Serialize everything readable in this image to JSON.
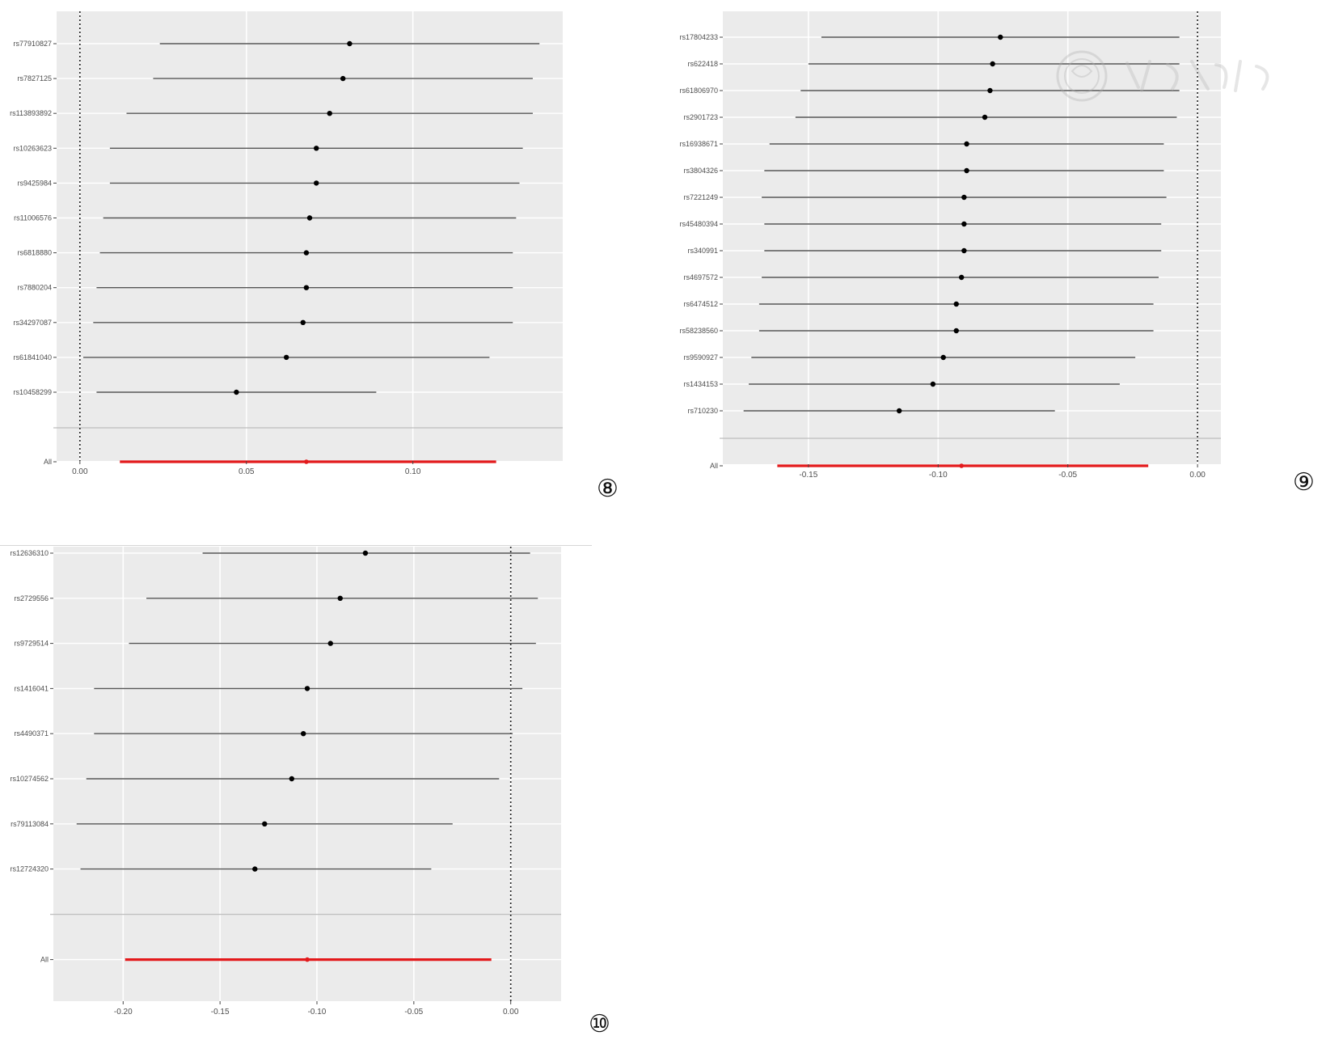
{
  "colors": {
    "panel_bg": "#ebebeb",
    "grid": "#ffffff",
    "ci_line": "#555555",
    "point": "#000000",
    "overall": "#e31a1c",
    "axis_text": "#4d4d4d"
  },
  "panels": {
    "p8": {
      "number": "⑧"
    },
    "p9": {
      "number": "⑨"
    },
    "p10": {
      "number": "⑩"
    }
  },
  "chart_data": [
    {
      "id": "p8",
      "type": "scatter",
      "subtype": "forest-plot",
      "xlim": [
        -0.007,
        0.145
      ],
      "xticks": [
        0.0,
        0.05,
        0.1
      ],
      "xtick_labels": [
        "0.00",
        "0.05",
        "0.10"
      ],
      "null_line": 0.0,
      "grid": true,
      "rows": [
        {
          "label": "rs77910827",
          "est": 0.081,
          "lo": 0.024,
          "hi": 0.138
        },
        {
          "label": "rs7827125",
          "est": 0.079,
          "lo": 0.022,
          "hi": 0.136
        },
        {
          "label": "rs113893892",
          "est": 0.075,
          "lo": 0.014,
          "hi": 0.136
        },
        {
          "label": "rs10263623",
          "est": 0.071,
          "lo": 0.009,
          "hi": 0.133
        },
        {
          "label": "rs9425984",
          "est": 0.071,
          "lo": 0.009,
          "hi": 0.132
        },
        {
          "label": "rs11006576",
          "est": 0.069,
          "lo": 0.007,
          "hi": 0.131
        },
        {
          "label": "rs6818880",
          "est": 0.068,
          "lo": 0.006,
          "hi": 0.13
        },
        {
          "label": "rs7880204",
          "est": 0.068,
          "lo": 0.005,
          "hi": 0.13
        },
        {
          "label": "rs34297087",
          "est": 0.067,
          "lo": 0.004,
          "hi": 0.13
        },
        {
          "label": "rs61841040",
          "est": 0.062,
          "lo": 0.001,
          "hi": 0.123
        },
        {
          "label": "rs10458299",
          "est": 0.047,
          "lo": 0.005,
          "hi": 0.089
        }
      ],
      "overall": {
        "label": "All",
        "est": 0.068,
        "lo": 0.012,
        "hi": 0.125
      }
    },
    {
      "id": "p9",
      "type": "scatter",
      "subtype": "forest-plot",
      "xlim": [
        -0.183,
        0.009
      ],
      "xticks": [
        -0.15,
        -0.1,
        -0.05,
        0.0
      ],
      "xtick_labels": [
        "-0.15",
        "-0.10",
        "-0.05",
        "0.00"
      ],
      "null_line": 0.0,
      "grid": true,
      "rows": [
        {
          "label": "rs17804233",
          "est": -0.076,
          "lo": -0.145,
          "hi": -0.007
        },
        {
          "label": "rs622418",
          "est": -0.079,
          "lo": -0.15,
          "hi": -0.007
        },
        {
          "label": "rs61806970",
          "est": -0.08,
          "lo": -0.153,
          "hi": -0.007
        },
        {
          "label": "rs2901723",
          "est": -0.082,
          "lo": -0.155,
          "hi": -0.008
        },
        {
          "label": "rs16938671",
          "est": -0.089,
          "lo": -0.165,
          "hi": -0.013
        },
        {
          "label": "rs3804326",
          "est": -0.089,
          "lo": -0.167,
          "hi": -0.013
        },
        {
          "label": "rs7221249",
          "est": -0.09,
          "lo": -0.168,
          "hi": -0.012
        },
        {
          "label": "rs45480394",
          "est": -0.09,
          "lo": -0.167,
          "hi": -0.014
        },
        {
          "label": "rs340991",
          "est": -0.09,
          "lo": -0.167,
          "hi": -0.014
        },
        {
          "label": "rs4697572",
          "est": -0.091,
          "lo": -0.168,
          "hi": -0.015
        },
        {
          "label": "rs6474512",
          "est": -0.093,
          "lo": -0.169,
          "hi": -0.017
        },
        {
          "label": "rs58238560",
          "est": -0.093,
          "lo": -0.169,
          "hi": -0.017
        },
        {
          "label": "rs9590927",
          "est": -0.098,
          "lo": -0.172,
          "hi": -0.024
        },
        {
          "label": "rs1434153",
          "est": -0.102,
          "lo": -0.173,
          "hi": -0.03
        },
        {
          "label": "rs710230",
          "est": -0.115,
          "lo": -0.175,
          "hi": -0.055
        }
      ],
      "overall": {
        "label": "All",
        "est": -0.091,
        "lo": -0.162,
        "hi": -0.019
      }
    },
    {
      "id": "p10",
      "type": "scatter",
      "subtype": "forest-plot",
      "xlim": [
        -0.236,
        0.026
      ],
      "xticks": [
        -0.2,
        -0.15,
        -0.1,
        -0.05,
        0.0
      ],
      "xtick_labels": [
        "-0.20",
        "-0.15",
        "-0.10",
        "-0.05",
        "0.00"
      ],
      "null_line": 0.0,
      "grid": true,
      "rows": [
        {
          "label": "rs12636310",
          "est": -0.075,
          "lo": -0.159,
          "hi": 0.01
        },
        {
          "label": "rs2729556",
          "est": -0.088,
          "lo": -0.188,
          "hi": 0.014
        },
        {
          "label": "rs9729514",
          "est": -0.093,
          "lo": -0.197,
          "hi": 0.013
        },
        {
          "label": "rs1416041",
          "est": -0.105,
          "lo": -0.215,
          "hi": 0.006
        },
        {
          "label": "rs4490371",
          "est": -0.107,
          "lo": -0.215,
          "hi": 0.001
        },
        {
          "label": "rs10274562",
          "est": -0.113,
          "lo": -0.219,
          "hi": -0.006
        },
        {
          "label": "rs79113084",
          "est": -0.127,
          "lo": -0.224,
          "hi": -0.03
        },
        {
          "label": "rs12724320",
          "est": -0.132,
          "lo": -0.222,
          "hi": -0.041
        }
      ],
      "overall": {
        "label": "All",
        "est": -0.105,
        "lo": -0.199,
        "hi": -0.01
      }
    }
  ]
}
